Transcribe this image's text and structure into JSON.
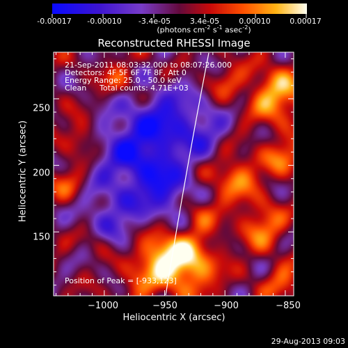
{
  "colorbar": {
    "tick_labels": [
      "-0.00017",
      "-0.00010",
      "-3.4e-05",
      "3.4e-05",
      "0.00010",
      "0.00017"
    ],
    "units_main": "(photons cm",
    "units_exp1": "-2",
    "units_mid": " s",
    "units_exp2": "-1",
    "units_end": " asec",
    "units_exp3": "-2",
    "units_close": ")",
    "range": [
      -0.00017,
      0.00017
    ]
  },
  "annotations": {
    "time_range": "21-Sep-2011 08:03:32.000 to 08:07:26.000",
    "detectors": "Detectors: 4F 5F 6F 7F 8F, Att 0",
    "energy": "Energy Range: 25.0 - 50.0 keV",
    "method": "Clean",
    "counts": "Total counts: 4.71E+03",
    "peak": "Position of Peak = [-933,123]"
  },
  "footer_date": "29-Aug-2013 09:03",
  "colors": {
    "background": "#000000",
    "text": "#ffffff",
    "limb_line": "#ffffff"
  },
  "chart_data": {
    "type": "heatmap",
    "title": "Reconstructed RHESSI Image",
    "xlabel": "Heliocentric X (arcsec)",
    "ylabel": "Heliocentric Y (arcsec)",
    "x_ticks": [
      "−1000",
      "−950",
      "−900",
      "−850"
    ],
    "y_ticks": [
      "250",
      "200",
      "150"
    ],
    "xlim": [
      -1042,
      -843
    ],
    "ylim": [
      102,
      285
    ],
    "peak_position": [
      -933,
      123
    ],
    "colormap": "blue-purple-red-orange-yellow-white",
    "solar_limb": "curved white line from about (-913, 285) to (-952, 102)"
  }
}
